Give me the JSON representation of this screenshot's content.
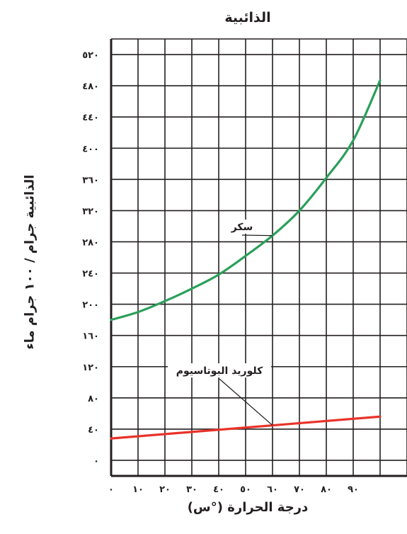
{
  "chart_data": {
    "type": "line",
    "title": "الذائبية",
    "xlabel": "درجة الحرارة (°س)",
    "ylabel": "الذائبية جرام / ١٠٠ جرام ماء",
    "x_ticks": [
      0,
      10,
      20,
      30,
      40,
      50,
      60,
      70,
      80,
      90
    ],
    "x_tick_labels": [
      "٠",
      "١٠",
      "٢٠",
      "٣٠",
      "٤٠",
      "٥٠",
      "٦٠",
      "٧٠",
      "٨٠",
      "٩٠"
    ],
    "y_ticks": [
      0,
      40,
      80,
      120,
      160,
      200,
      240,
      280,
      320,
      360,
      400,
      440,
      480,
      520
    ],
    "y_tick_labels": [
      "٠",
      "٤٠",
      "٨٠",
      "١٢٠",
      "١٦٠",
      "٢٠٠",
      "٢٤٠",
      "٢٨٠",
      "٣٢٠",
      "٣٦٠",
      "٤٠٠",
      "٤٤٠",
      "٤٨٠",
      "٥٢٠"
    ],
    "xlim": [
      0,
      110
    ],
    "ylim": [
      -20,
      540
    ],
    "grid": true,
    "series": [
      {
        "name": "سكر",
        "color": "#2aa05a",
        "x": [
          0,
          10,
          20,
          30,
          40,
          50,
          60,
          70,
          80,
          90,
          100
        ],
        "y": [
          180,
          190,
          204,
          220,
          238,
          262,
          288,
          320,
          362,
          410,
          487
        ]
      },
      {
        "name": "كلوريد البوتاسيوم",
        "color": "#e8332a",
        "x": [
          0,
          100
        ],
        "y": [
          28,
          56
        ]
      }
    ],
    "annotations": [
      {
        "text": "سكر",
        "series": "سكر",
        "at_x": 60
      },
      {
        "text": "كلوريد البوتاسيوم",
        "series": "كلوريد البوتاسيوم",
        "at_x": 60
      }
    ]
  }
}
